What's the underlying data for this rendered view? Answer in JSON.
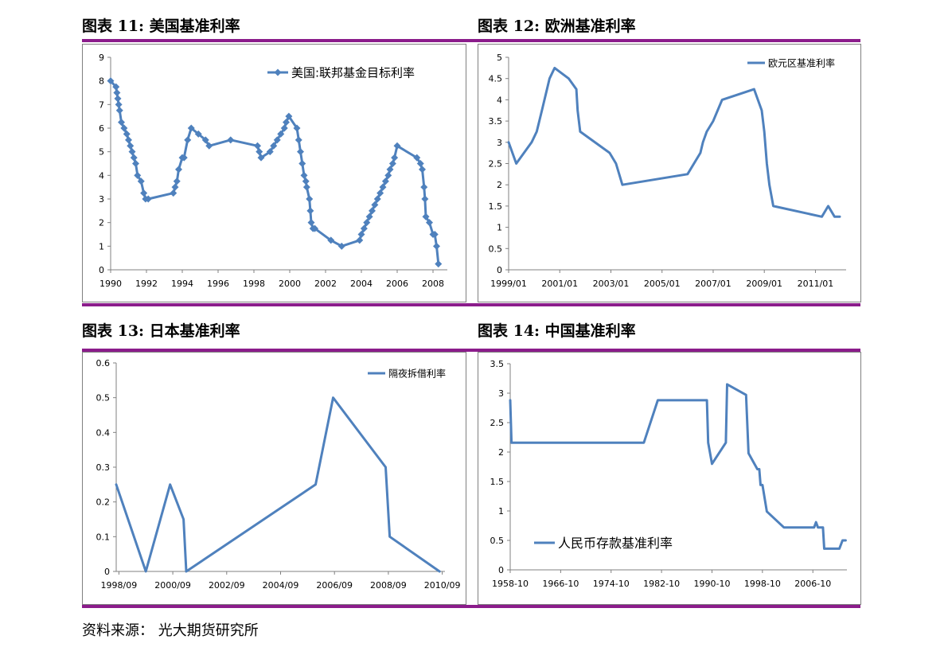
{
  "panels": [
    {
      "heading": "图表 11:  美国基准利率"
    },
    {
      "heading": "图表 12:  欧洲基准利率"
    },
    {
      "heading": "图表 13:  日本基准利率"
    },
    {
      "heading": "图表 14:      中国基准利率"
    }
  ],
  "source_note": "资料来源：  光大期货研究所",
  "colors": {
    "rule": "#8B1C8B",
    "series": "#4F81BD",
    "axis": "#808080"
  },
  "chart_data": [
    {
      "type": "line",
      "xlim": [
        1990,
        2008.8
      ],
      "ylim": [
        0,
        9
      ],
      "xticks": [
        1990,
        1992,
        1994,
        1996,
        1998,
        2000,
        2002,
        2004,
        2006,
        2008
      ],
      "xtick_labels": [
        "1990",
        "1992",
        "1994",
        "1996",
        "1998",
        "2000",
        "2002",
        "2004",
        "2006",
        "2008"
      ],
      "yticks": [
        0,
        1,
        2,
        3,
        4,
        5,
        6,
        7,
        8,
        9
      ],
      "ytick_labels": [
        "0",
        "1",
        "2",
        "3",
        "4",
        "5",
        "6",
        "7",
        "8",
        "9"
      ],
      "markers": "diamond",
      "legend_position": "top-right",
      "series": [
        {
          "name": "美国:联邦基金目标利率",
          "x": [
            1990.0,
            1990.3,
            1990.35,
            1990.4,
            1990.45,
            1990.5,
            1990.6,
            1990.75,
            1990.9,
            1991.0,
            1991.1,
            1991.2,
            1991.3,
            1991.4,
            1991.5,
            1991.7,
            1991.85,
            1991.95,
            1992.1,
            1993.5,
            1993.6,
            1993.7,
            1993.8,
            1994.0,
            1994.1,
            1994.3,
            1994.5,
            1994.9,
            1995.3,
            1995.5,
            1996.7,
            1998.2,
            1998.3,
            1998.4,
            1998.9,
            1999.1,
            1999.3,
            1999.5,
            1999.7,
            1999.8,
            1999.95,
            2000.4,
            2000.5,
            2000.6,
            2000.7,
            2000.8,
            2000.9,
            2000.95,
            2001.1,
            2001.15,
            2001.2,
            2001.3,
            2001.4,
            2002.3,
            2002.9,
            2003.9,
            2004.0,
            2004.15,
            2004.3,
            2004.45,
            2004.6,
            2004.75,
            2004.9,
            2005.05,
            2005.2,
            2005.35,
            2005.5,
            2005.6,
            2005.75,
            2005.85,
            2006.0,
            2007.1,
            2007.3,
            2007.4,
            2007.5,
            2007.55,
            2007.6,
            2007.8,
            2008.0,
            2008.1,
            2008.2,
            2008.3
          ],
          "y": [
            8.0,
            7.75,
            7.5,
            7.25,
            7.0,
            6.75,
            6.25,
            6.0,
            5.75,
            5.5,
            5.25,
            5.0,
            4.75,
            4.5,
            4.0,
            3.75,
            3.25,
            3.0,
            3.0,
            3.25,
            3.5,
            3.75,
            4.25,
            4.75,
            4.75,
            5.5,
            6.0,
            5.75,
            5.5,
            5.25,
            5.5,
            5.25,
            5.0,
            4.75,
            5.0,
            5.25,
            5.5,
            5.75,
            6.0,
            6.25,
            6.5,
            6.0,
            5.5,
            5.0,
            4.5,
            4.0,
            3.75,
            3.5,
            3.0,
            2.5,
            2.0,
            1.75,
            1.75,
            1.25,
            1.0,
            1.25,
            1.5,
            1.75,
            2.0,
            2.25,
            2.5,
            2.75,
            3.0,
            3.25,
            3.5,
            3.75,
            4.0,
            4.25,
            4.5,
            4.75,
            5.25,
            4.75,
            4.5,
            4.25,
            3.5,
            3.0,
            2.25,
            2.0,
            1.5,
            1.5,
            1.0,
            0.25
          ]
        }
      ]
    },
    {
      "type": "line",
      "xlim": [
        1999.0,
        2012.2
      ],
      "ylim": [
        0,
        5
      ],
      "xticks": [
        1999.0,
        2001.0,
        2003.0,
        2005.0,
        2007.0,
        2009.0,
        2011.0
      ],
      "xtick_labels": [
        "1999/01",
        "2001/01",
        "2003/01",
        "2005/01",
        "2007/01",
        "2009/01",
        "2011/01"
      ],
      "yticks": [
        0,
        0.5,
        1,
        1.5,
        2,
        2.5,
        3,
        3.5,
        4,
        4.5,
        5
      ],
      "ytick_labels": [
        "0",
        "0.5",
        "1",
        "1.5",
        "2",
        "2.5",
        "3",
        "3.5",
        "4",
        "4.5",
        "5"
      ],
      "legend_position": "top-right",
      "series": [
        {
          "name": "欧元区基准利率",
          "x": [
            1999.0,
            1999.3,
            1999.9,
            2000.1,
            2000.3,
            2000.5,
            2000.6,
            2000.8,
            2001.35,
            2001.65,
            2001.7,
            2001.8,
            2002.95,
            2003.2,
            2003.45,
            2006.0,
            2006.5,
            2006.6,
            2006.75,
            2007.0,
            2007.35,
            2008.6,
            2008.9,
            2009.0,
            2009.1,
            2009.2,
            2009.35,
            2011.25,
            2011.5,
            2011.75,
            2011.95
          ],
          "y": [
            3.0,
            2.5,
            3.0,
            3.25,
            3.75,
            4.25,
            4.5,
            4.75,
            4.5,
            4.25,
            3.75,
            3.25,
            2.75,
            2.5,
            2.0,
            2.25,
            2.75,
            3.0,
            3.25,
            3.5,
            4.0,
            4.25,
            3.75,
            3.25,
            2.5,
            2.0,
            1.5,
            1.25,
            1.5,
            1.25,
            1.25
          ]
        }
      ]
    },
    {
      "type": "line",
      "xlim": [
        1998.6,
        2010.8
      ],
      "ylim": [
        0,
        0.6
      ],
      "xticks": [
        1998.7,
        2000.7,
        2002.7,
        2004.7,
        2006.7,
        2008.7,
        2010.7
      ],
      "xtick_labels": [
        "1998/09",
        "2000/09",
        "2002/09",
        "2004/09",
        "2006/09",
        "2008/09",
        "2010/09"
      ],
      "yticks": [
        0,
        0.1,
        0.2,
        0.3,
        0.4,
        0.5,
        0.6
      ],
      "ytick_labels": [
        "0",
        "0.1",
        "0.2",
        "0.3",
        "0.4",
        "0.5",
        "0.6"
      ],
      "legend_position": "top-right",
      "series": [
        {
          "name": "隔夜拆借利率",
          "x": [
            1998.6,
            1999.7,
            2000.6,
            2001.1,
            2001.2,
            2006.0,
            2006.65,
            2008.6,
            2008.75,
            2010.6
          ],
          "y": [
            0.25,
            0.0,
            0.25,
            0.15,
            0.0,
            0.25,
            0.5,
            0.3,
            0.1,
            0.0
          ]
        }
      ]
    },
    {
      "type": "line",
      "xlim": [
        1958.8,
        2012.2
      ],
      "ylim": [
        0,
        3.5
      ],
      "xticks": [
        1958.8,
        1966.8,
        1974.8,
        1982.8,
        1990.8,
        1998.8,
        2006.8
      ],
      "xtick_labels": [
        "1958-10",
        "1966-10",
        "1974-10",
        "1982-10",
        "1990-10",
        "1998-10",
        "2006-10"
      ],
      "yticks": [
        0,
        0.5,
        1,
        1.5,
        2,
        2.5,
        3,
        3.5
      ],
      "ytick_labels": [
        "0",
        "0.5",
        "1",
        "1.5",
        "2",
        "2.5",
        "3",
        "3.5"
      ],
      "legend_position": "bottom-left",
      "series": [
        {
          "name": "人民币存款基准利率",
          "x": [
            1958.8,
            1959.0,
            1980.0,
            1982.2,
            1990.0,
            1990.2,
            1990.8,
            1993.0,
            1993.2,
            1996.2,
            1996.6,
            1998.0,
            1998.3,
            1998.5,
            1998.8,
            1999.5,
            2002.2,
            2007.0,
            2007.3,
            2007.6,
            2008.0,
            2008.4,
            2008.6,
            2011.0,
            2011.5,
            2012.0
          ],
          "y": [
            2.88,
            2.16,
            2.16,
            2.88,
            2.88,
            2.16,
            1.8,
            2.16,
            3.15,
            2.97,
            1.98,
            1.71,
            1.71,
            1.44,
            1.44,
            0.99,
            0.72,
            0.72,
            0.81,
            0.72,
            0.72,
            0.72,
            0.36,
            0.36,
            0.5,
            0.5
          ]
        }
      ]
    }
  ]
}
